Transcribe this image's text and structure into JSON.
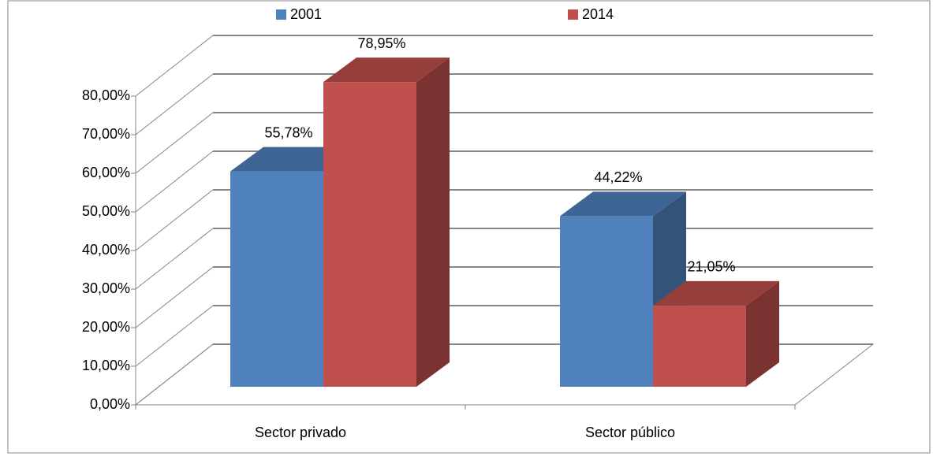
{
  "chart_data": {
    "type": "bar3d",
    "categories": [
      "Sector privado",
      "Sector público"
    ],
    "series": [
      {
        "name": "2001",
        "color": "#4f81bd",
        "values": [
          55.78,
          44.22
        ],
        "value_labels": [
          "55,78%",
          "44,22%"
        ]
      },
      {
        "name": "2014",
        "color": "#c0504d",
        "values": [
          78.95,
          21.05
        ],
        "value_labels": [
          "78,95%",
          "21,05%"
        ]
      }
    ],
    "ylim": [
      0,
      80
    ],
    "yticks": [
      {
        "value": 0,
        "label": "0,00%"
      },
      {
        "value": 10,
        "label": "10,00%"
      },
      {
        "value": 20,
        "label": "20,00%"
      },
      {
        "value": 30,
        "label": "30,00%"
      },
      {
        "value": 40,
        "label": "40,00%"
      },
      {
        "value": 50,
        "label": "50,00%"
      },
      {
        "value": 60,
        "label": "60,00%"
      },
      {
        "value": 70,
        "label": "70,00%"
      },
      {
        "value": 80,
        "label": "80,00%"
      }
    ],
    "grid": true,
    "legend": "top"
  }
}
